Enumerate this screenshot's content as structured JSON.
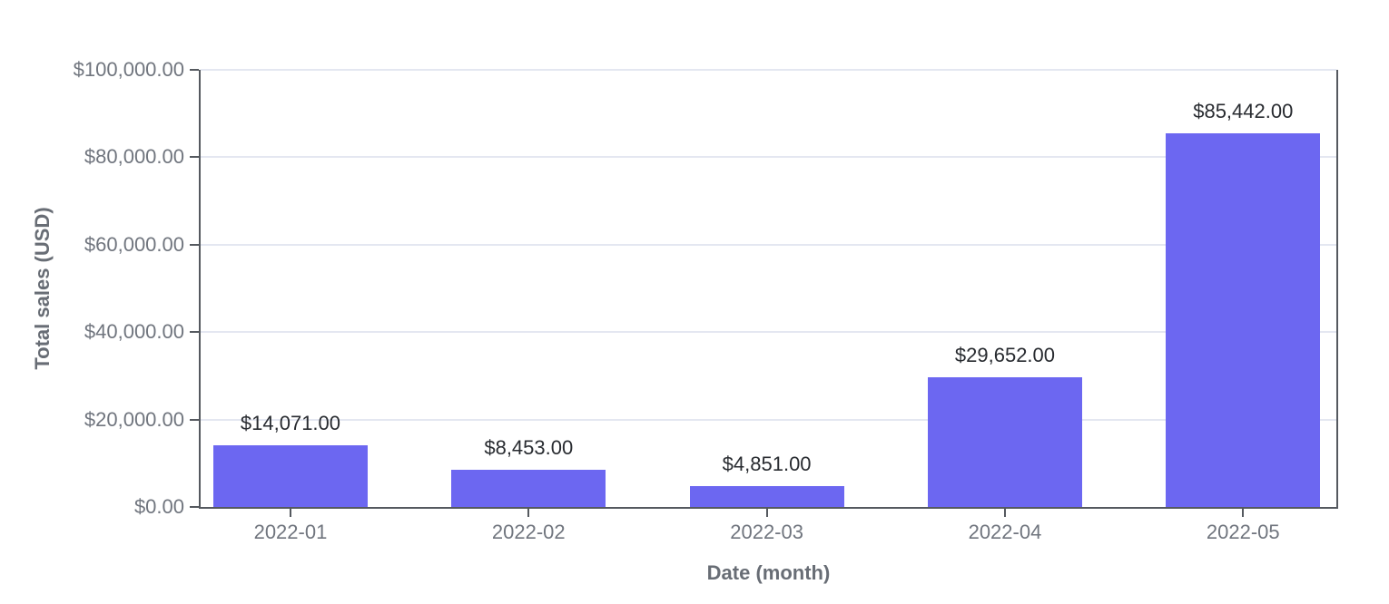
{
  "chart_data": {
    "type": "bar",
    "title": "",
    "xlabel": "Date (month)",
    "ylabel": "Total sales (USD)",
    "categories": [
      "2022-01",
      "2022-02",
      "2022-03",
      "2022-04",
      "2022-05"
    ],
    "values": [
      14071,
      8453,
      4851,
      29652,
      85442
    ],
    "value_labels": [
      "$14,071.00",
      "$8,453.00",
      "$4,851.00",
      "$29,652.00",
      "$85,442.00"
    ],
    "ylim": [
      0,
      100000
    ],
    "y_ticks": [
      {
        "value": 0,
        "label": "$0.00"
      },
      {
        "value": 20000,
        "label": "$20,000.00"
      },
      {
        "value": 40000,
        "label": "$40,000.00"
      },
      {
        "value": 60000,
        "label": "$60,000.00"
      },
      {
        "value": 80000,
        "label": "$80,000.00"
      },
      {
        "value": 100000,
        "label": "$100,000.00"
      }
    ],
    "grid": "horizontal",
    "legend": "none",
    "colors": {
      "bar": "#6C67F1",
      "axis": "#55595F",
      "grid": "#E4E7F1",
      "tick_label": "#70757E",
      "axis_title": "#686D75",
      "value_label": "#282B30",
      "background": "#FFFFFF"
    },
    "layout": {
      "first_center_pct": 7.91,
      "step_pct": 20.97,
      "bar_width_pct": 13.6
    }
  }
}
